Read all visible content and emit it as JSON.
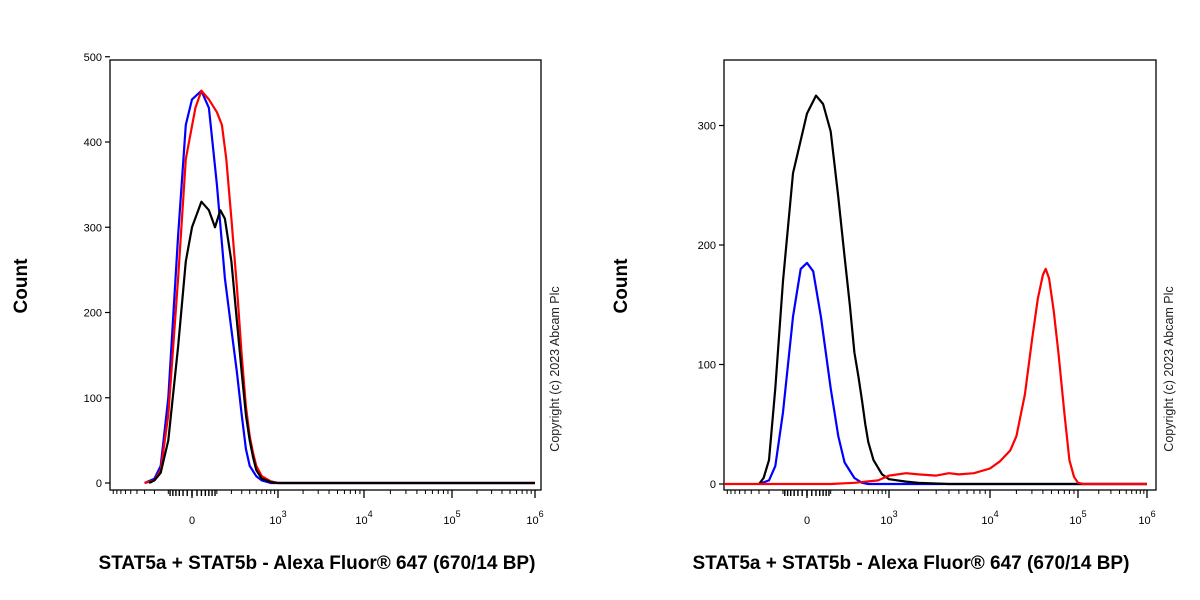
{
  "chart_data": [
    {
      "type": "line",
      "panel": "left",
      "ylabel": "Count",
      "xlabel": "STAT5a + STAT5b - Alexa Fluor® 647 (670/14 BP)",
      "yticks": [
        "0",
        "100",
        "200",
        "300",
        "400",
        "500"
      ],
      "xticks": [
        {
          "base": "0",
          "exp": ""
        },
        {
          "base": "10",
          "exp": "3"
        },
        {
          "base": "10",
          "exp": "4"
        },
        {
          "base": "10",
          "exp": "5"
        },
        {
          "base": "10",
          "exp": "6"
        }
      ],
      "ylim": [
        0,
        500
      ],
      "xscale": "biexponential",
      "series": [
        {
          "color": "#0000ff",
          "points": [
            [
              -300,
              0
            ],
            [
              -200,
              5
            ],
            [
              -150,
              20
            ],
            [
              -100,
              100
            ],
            [
              -50,
              290
            ],
            [
              -20,
              420
            ],
            [
              0,
              450
            ],
            [
              30,
              460
            ],
            [
              60,
              440
            ],
            [
              100,
              350
            ],
            [
              150,
              240
            ],
            [
              200,
              180
            ],
            [
              250,
              130
            ],
            [
              300,
              80
            ],
            [
              350,
              40
            ],
            [
              400,
              20
            ],
            [
              500,
              8
            ],
            [
              600,
              3
            ],
            [
              800,
              0
            ],
            [
              1000000,
              0
            ]
          ]
        },
        {
          "color": "#ff0000",
          "points": [
            [
              -300,
              0
            ],
            [
              -200,
              3
            ],
            [
              -150,
              15
            ],
            [
              -100,
              80
            ],
            [
              -50,
              240
            ],
            [
              -20,
              380
            ],
            [
              10,
              440
            ],
            [
              30,
              460
            ],
            [
              60,
              450
            ],
            [
              100,
              435
            ],
            [
              130,
              420
            ],
            [
              160,
              380
            ],
            [
              200,
              310
            ],
            [
              250,
              230
            ],
            [
              300,
              150
            ],
            [
              350,
              90
            ],
            [
              400,
              55
            ],
            [
              450,
              35
            ],
            [
              500,
              20
            ],
            [
              600,
              8
            ],
            [
              800,
              2
            ],
            [
              1000,
              0
            ],
            [
              1000000,
              0
            ]
          ]
        },
        {
          "color": "#000000",
          "points": [
            [
              -250,
              0
            ],
            [
              -200,
              3
            ],
            [
              -150,
              12
            ],
            [
              -100,
              50
            ],
            [
              -50,
              160
            ],
            [
              -20,
              260
            ],
            [
              0,
              300
            ],
            [
              30,
              330
            ],
            [
              60,
              320
            ],
            [
              90,
              300
            ],
            [
              120,
              320
            ],
            [
              150,
              310
            ],
            [
              200,
              260
            ],
            [
              250,
              190
            ],
            [
              300,
              130
            ],
            [
              350,
              80
            ],
            [
              400,
              50
            ],
            [
              450,
              30
            ],
            [
              500,
              15
            ],
            [
              600,
              5
            ],
            [
              800,
              1
            ],
            [
              1000,
              0
            ],
            [
              1000000,
              0
            ]
          ]
        }
      ],
      "copyright": "Copyright (c) 2023 Abcam Plc"
    },
    {
      "type": "line",
      "panel": "right",
      "ylabel": "Count",
      "xlabel": "STAT5a + STAT5b - Alexa Fluor® 647 (670/14 BP)",
      "yticks": [
        "0",
        "100",
        "200",
        "300"
      ],
      "xticks": [
        {
          "base": "0",
          "exp": ""
        },
        {
          "base": "10",
          "exp": "3"
        },
        {
          "base": "10",
          "exp": "4"
        },
        {
          "base": "10",
          "exp": "5"
        },
        {
          "base": "10",
          "exp": "6"
        }
      ],
      "ylim": [
        0,
        350
      ],
      "xscale": "biexponential",
      "series": [
        {
          "color": "#0000ff",
          "points": [
            [
              -300,
              0
            ],
            [
              -200,
              3
            ],
            [
              -150,
              15
            ],
            [
              -100,
              60
            ],
            [
              -50,
              140
            ],
            [
              -20,
              180
            ],
            [
              0,
              185
            ],
            [
              20,
              178
            ],
            [
              50,
              140
            ],
            [
              100,
              80
            ],
            [
              150,
              40
            ],
            [
              200,
              18
            ],
            [
              300,
              5
            ],
            [
              400,
              1
            ],
            [
              500,
              0
            ],
            [
              1000000,
              0
            ]
          ]
        },
        {
          "color": "#000000",
          "points": [
            [
              -300,
              0
            ],
            [
              -250,
              5
            ],
            [
              -200,
              20
            ],
            [
              -150,
              80
            ],
            [
              -100,
              170
            ],
            [
              -50,
              260
            ],
            [
              0,
              310
            ],
            [
              30,
              325
            ],
            [
              60,
              318
            ],
            [
              100,
              295
            ],
            [
              150,
              240
            ],
            [
              200,
              190
            ],
            [
              250,
              150
            ],
            [
              300,
              110
            ],
            [
              350,
              90
            ],
            [
              400,
              70
            ],
            [
              450,
              50
            ],
            [
              500,
              35
            ],
            [
              600,
              20
            ],
            [
              800,
              8
            ],
            [
              1000,
              4
            ],
            [
              1500,
              2
            ],
            [
              2000,
              1
            ],
            [
              4000,
              0
            ],
            [
              1000000,
              0
            ]
          ]
        },
        {
          "color": "#ff0000",
          "points": [
            [
              -1000,
              0
            ],
            [
              100,
              0
            ],
            [
              300,
              1
            ],
            [
              700,
              3
            ],
            [
              1000,
              7
            ],
            [
              1500,
              9
            ],
            [
              2000,
              8
            ],
            [
              3000,
              7
            ],
            [
              4000,
              9
            ],
            [
              5000,
              8
            ],
            [
              7000,
              9
            ],
            [
              10000,
              13
            ],
            [
              13000,
              19
            ],
            [
              17000,
              28
            ],
            [
              20000,
              40
            ],
            [
              25000,
              75
            ],
            [
              30000,
              120
            ],
            [
              35000,
              155
            ],
            [
              40000,
              175
            ],
            [
              43000,
              180
            ],
            [
              47000,
              172
            ],
            [
              53000,
              145
            ],
            [
              60000,
              110
            ],
            [
              70000,
              60
            ],
            [
              80000,
              20
            ],
            [
              90000,
              6
            ],
            [
              100000,
              1
            ],
            [
              120000,
              0
            ],
            [
              1000000,
              0
            ]
          ]
        }
      ],
      "copyright": "Copyright (c) 2023 Abcam Plc"
    }
  ]
}
